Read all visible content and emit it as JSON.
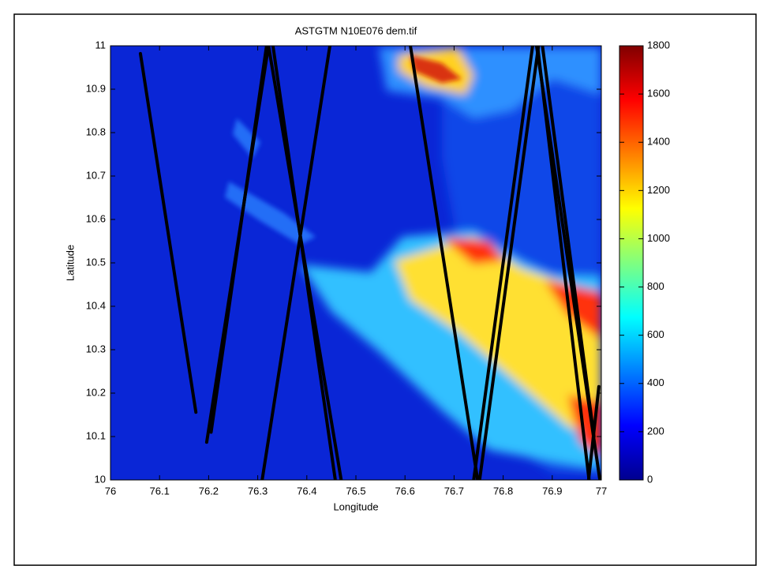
{
  "chart_data": {
    "type": "heatmap",
    "title": "ASTGTM N10E076 dem.tif",
    "x_label": "Longitude",
    "y_label": "Latitude",
    "xlim": [
      76,
      77
    ],
    "ylim": [
      10,
      11
    ],
    "xticks": [
      76,
      76.1,
      76.2,
      76.3,
      76.4,
      76.5,
      76.6,
      76.7,
      76.8,
      76.9,
      77
    ],
    "yticks": [
      10,
      10.1,
      10.2,
      10.3,
      10.4,
      10.5,
      10.6,
      10.7,
      10.8,
      10.9,
      11
    ],
    "colorbar": {
      "colormap": "jet",
      "clim": [
        0,
        1800
      ],
      "ticks": [
        0,
        200,
        400,
        600,
        800,
        1000,
        1200,
        1400,
        1600,
        1800
      ]
    },
    "tracks": {
      "color": "#000000",
      "series": [
        {
          "x": [
            76.061,
            76.174
          ],
          "y": [
            10.982,
            10.156
          ]
        },
        {
          "x": [
            76.196,
            76.322
          ],
          "y": [
            10.087,
            11
          ]
        },
        {
          "x": [
            76.205,
            76.318
          ],
          "y": [
            10.11,
            11
          ]
        },
        {
          "x": [
            76.322,
            76.47
          ],
          "y": [
            11,
            10
          ]
        },
        {
          "x": [
            76.331,
            76.458
          ],
          "y": [
            11,
            10
          ]
        },
        {
          "x": [
            76.447,
            76.309
          ],
          "y": [
            11,
            10
          ]
        },
        {
          "x": [
            76.611,
            76.748
          ],
          "y": [
            11,
            10
          ]
        },
        {
          "x": [
            76.74,
            76.86
          ],
          "y": [
            10,
            11
          ]
        },
        {
          "x": [
            76.752,
            76.872
          ],
          "y": [
            10,
            11
          ]
        },
        {
          "x": [
            76.868,
            76.997
          ],
          "y": [
            11,
            10
          ]
        },
        {
          "x": [
            76.88,
            76.985
          ],
          "y": [
            11,
            10.1
          ]
        },
        {
          "x": [
            76.975,
            76.87
          ],
          "y": [
            10,
            11
          ]
        },
        {
          "x": [
            76.995,
            76.974
          ],
          "y": [
            10.215,
            10
          ]
        }
      ]
    }
  }
}
